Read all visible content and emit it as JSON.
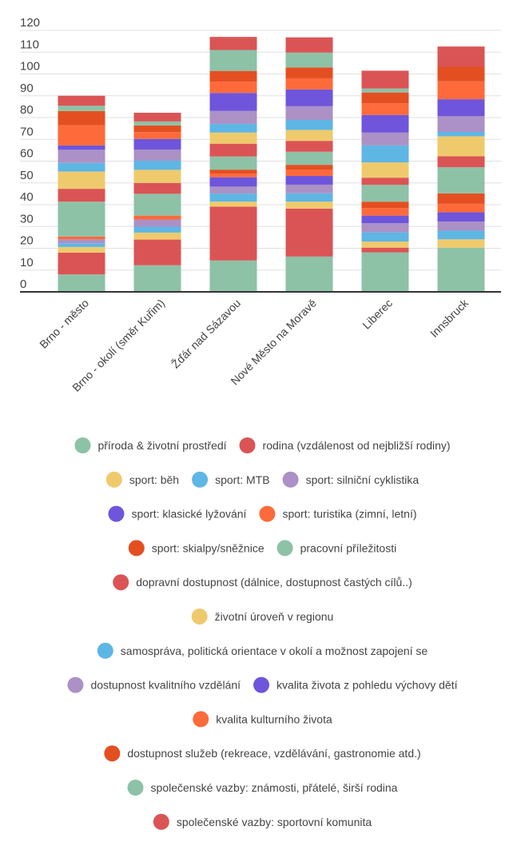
{
  "chart_data": {
    "type": "bar",
    "stacked": true,
    "ylim": [
      0,
      120
    ],
    "yticks": [
      0,
      10,
      20,
      30,
      40,
      50,
      60,
      70,
      80,
      90,
      100,
      110,
      120
    ],
    "grid": true,
    "legend_position": "bottom",
    "categories": [
      "Brno - město",
      "Brno - okolí (směr Kuřim)",
      "Žďár nad Sázavou",
      "Nové Město na Moravě",
      "Liberec",
      "Innsbruck"
    ],
    "series": [
      {
        "name": "příroda & životní prostředí",
        "color": "#8dc2a7",
        "values": [
          8,
          12.2,
          14.4,
          16.2,
          18.1,
          20.3
        ]
      },
      {
        "name": "rodina (vzdálenost od nejbližší rodiny)",
        "color": "#db5455",
        "values": [
          10,
          11.8,
          24.7,
          22.0,
          2.2,
          0
        ]
      },
      {
        "name": "sport: běh",
        "color": "#efca6c",
        "values": [
          2.6,
          3.2,
          2.3,
          3.2,
          2.8,
          3.8
        ]
      },
      {
        "name": "sport: MTB",
        "color": "#5eb6e4",
        "values": [
          1.7,
          2.7,
          3.7,
          3.8,
          4.2,
          4.0
        ]
      },
      {
        "name": "sport: silniční cyklistika",
        "color": "#ab91c6",
        "values": [
          1.8,
          3.3,
          3.2,
          4.0,
          4.2,
          4.2
        ]
      },
      {
        "name": "sport: klasické lyžování",
        "color": "#6e55db",
        "values": [
          0,
          0,
          4.3,
          4.0,
          3.5,
          4.2
        ]
      },
      {
        "name": "sport: turistika (zimní, letní)",
        "color": "#fe6a3a",
        "values": [
          1.3,
          1.8,
          1.7,
          2.8,
          3.5,
          3.9
        ]
      },
      {
        "name": "sport: skialpy/sněžnice",
        "color": "#e44f22",
        "values": [
          0,
          0,
          1.8,
          2.3,
          2.9,
          4.8
        ]
      },
      {
        "name": "pracovní příležitosti",
        "color": "#8dc2a7",
        "values": [
          16.0,
          10.0,
          6.0,
          6.0,
          7.7,
          12.0
        ]
      },
      {
        "name": "dopravní dostupnost (dálnice, dostupnost častých cílů..)",
        "color": "#db5455",
        "values": [
          5.9,
          5.0,
          5.9,
          5.0,
          3.3,
          5.0
        ]
      },
      {
        "name": "životní úroveň v regionu",
        "color": "#efca6c",
        "values": [
          7.9,
          6.0,
          5.1,
          5.0,
          7.0,
          9.2
        ]
      },
      {
        "name": "samospráva, politická orientace v okolí a možnost zapojení se",
        "color": "#5eb6e4",
        "values": [
          4.0,
          4.2,
          4.0,
          4.6,
          7.8,
          2.0
        ]
      },
      {
        "name": "dostupnost kvalitního vzdělání",
        "color": "#ab91c6",
        "values": [
          6.0,
          5.1,
          6.0,
          6.3,
          5.9,
          7.2
        ]
      },
      {
        "name": "kvalita života z pohledu výchovy dětí",
        "color": "#6e55db",
        "values": [
          2.0,
          4.9,
          8.2,
          7.7,
          8.1,
          7.8
        ]
      },
      {
        "name": "kvalita kulturního života",
        "color": "#fe6a3a",
        "values": [
          9.2,
          3.1,
          5.1,
          5.1,
          5.3,
          8.2
        ]
      },
      {
        "name": "dostupnost služeb (rekreace, vzdělávání, gastronomie atd.)",
        "color": "#e44f22",
        "values": [
          6.6,
          3.1,
          5.0,
          5.0,
          5.0,
          6.7
        ]
      },
      {
        "name": "společenské vazby: známosti, přátelé, širší rodina",
        "color": "#8dc2a7",
        "values": [
          2.4,
          1.8,
          9.6,
          6.8,
          1.8,
          0
        ]
      },
      {
        "name": "společenské vazby: sportovní komunita",
        "color": "#db5455",
        "values": [
          4.6,
          4.0,
          6.0,
          7.0,
          8.2,
          9.3
        ]
      }
    ]
  }
}
